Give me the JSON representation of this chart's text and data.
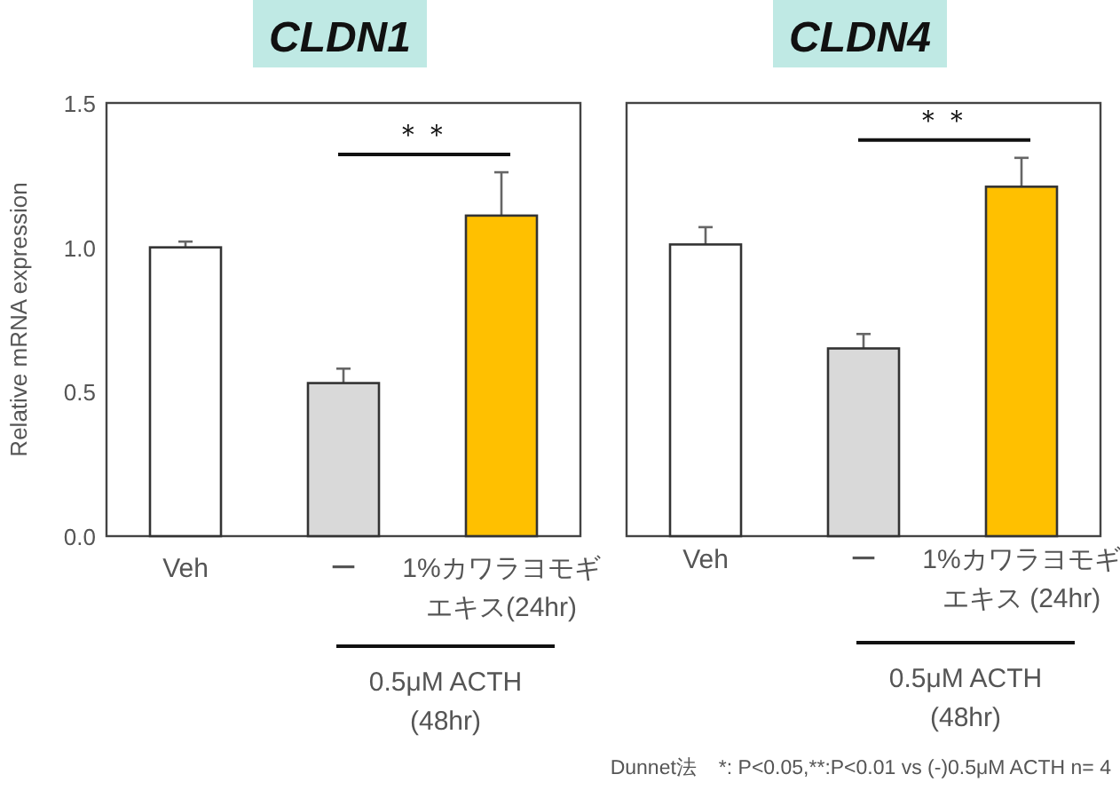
{
  "chart_data": [
    {
      "type": "bar",
      "title": "CLDN1",
      "ylabel": "Relative mRNA expression",
      "categories": [
        "Veh",
        "ー",
        "1%カワラヨモギエキス(24hr)"
      ],
      "values": [
        1.0,
        0.53,
        1.11
      ],
      "errors": [
        0.02,
        0.05,
        0.15
      ],
      "colors": [
        "#ffffff",
        "#d9d9d9",
        "#ffc000"
      ],
      "ylim": [
        0,
        1.5
      ],
      "yticks": [
        {
          "value": 0,
          "label": "0.0"
        },
        {
          "value": 0.5,
          "label": "0.5"
        },
        {
          "value": 1,
          "label": "1.0"
        },
        {
          "value": 1.5,
          "label": "1.5"
        }
      ],
      "annotations": [
        "＊＊",
        "0.5μM ACTH\n(48hr)"
      ]
    },
    {
      "type": "bar",
      "title": "CLDN4",
      "categories": [
        "Veh",
        "ー",
        "1%カワラヨモギエキス (24hr)"
      ],
      "values": [
        1.01,
        0.65,
        1.21
      ],
      "errors": [
        0.06,
        0.05,
        0.1
      ],
      "colors": [
        "#ffffff",
        "#d9d9d9",
        "#ffc000"
      ],
      "ylim": [
        0,
        1.5
      ],
      "tick_labels": "x",
      "annotations": [
        "＊＊",
        "0.5μM ACTH\n(48hr)",
        "Dunnet法　*: P<0.05,**:P<0.01  vs (-)0.5μM ACTH n= 4"
      ]
    }
  ]
}
